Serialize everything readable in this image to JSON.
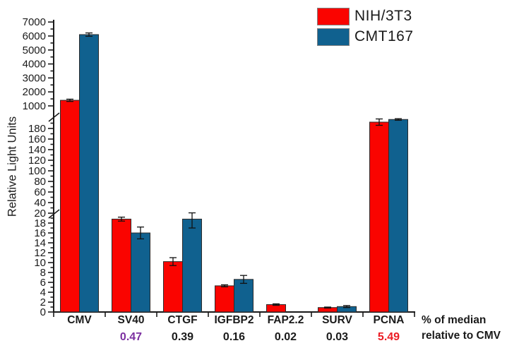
{
  "figure": {
    "y_axis_title": "Relative Light Units",
    "footnote_line1": "% of median",
    "footnote_line2": "relative to CMV",
    "legend": [
      {
        "label": "NIH/3T3",
        "color": "#FA0400"
      },
      {
        "label": "CMT167",
        "color": "#10618F"
      }
    ]
  },
  "chart_data": {
    "type": "bar",
    "title": "",
    "xlabel": "",
    "ylabel": "Relative Light Units",
    "grid": false,
    "legend_position": "top-right",
    "categories": [
      "CMV",
      "SV40",
      "CTGF",
      "IGFBP2",
      "FAP2.2",
      "SURV",
      "PCNA"
    ],
    "series": [
      {
        "name": "NIH/3T3",
        "color": "#FA0400",
        "values": [
          1400,
          18.8,
          10.2,
          5.3,
          1.5,
          0.9,
          192
        ],
        "errors": [
          80,
          0.4,
          0.8,
          0.2,
          0.15,
          0.1,
          6
        ]
      },
      {
        "name": "CMT167",
        "color": "#10618F",
        "values": [
          6100,
          16.0,
          18.8,
          6.6,
          0,
          1.1,
          197
        ],
        "errors": [
          120,
          1.2,
          1.8,
          0.8,
          0,
          0.2,
          1.5
        ]
      }
    ],
    "ratio_row": {
      "caption_line1": "% of median",
      "caption_line2": "relative to CMV",
      "values": [
        null,
        "0.47",
        "0.39",
        "0.16",
        "0.02",
        "0.03",
        "5.49"
      ],
      "colors": [
        null,
        "#7B2FA0",
        "#1A1A1A",
        "#1A1A1A",
        "#1A1A1A",
        "#1A1A1A",
        "#EC1C24"
      ]
    },
    "y_axis": {
      "unit": "Relative Light Units",
      "segments": [
        {
          "range": [
            0,
            20
          ],
          "label_step": 2,
          "minor_step": 1
        },
        {
          "range": [
            20,
            200
          ],
          "label_step": 20,
          "minor_step": 10,
          "label_max": 180
        },
        {
          "range": [
            1000,
            7000
          ],
          "label_step": 1000,
          "minor_step": 500
        }
      ],
      "breaks_between": [
        [
          20,
          20
        ],
        [
          200,
          1000
        ]
      ]
    }
  }
}
